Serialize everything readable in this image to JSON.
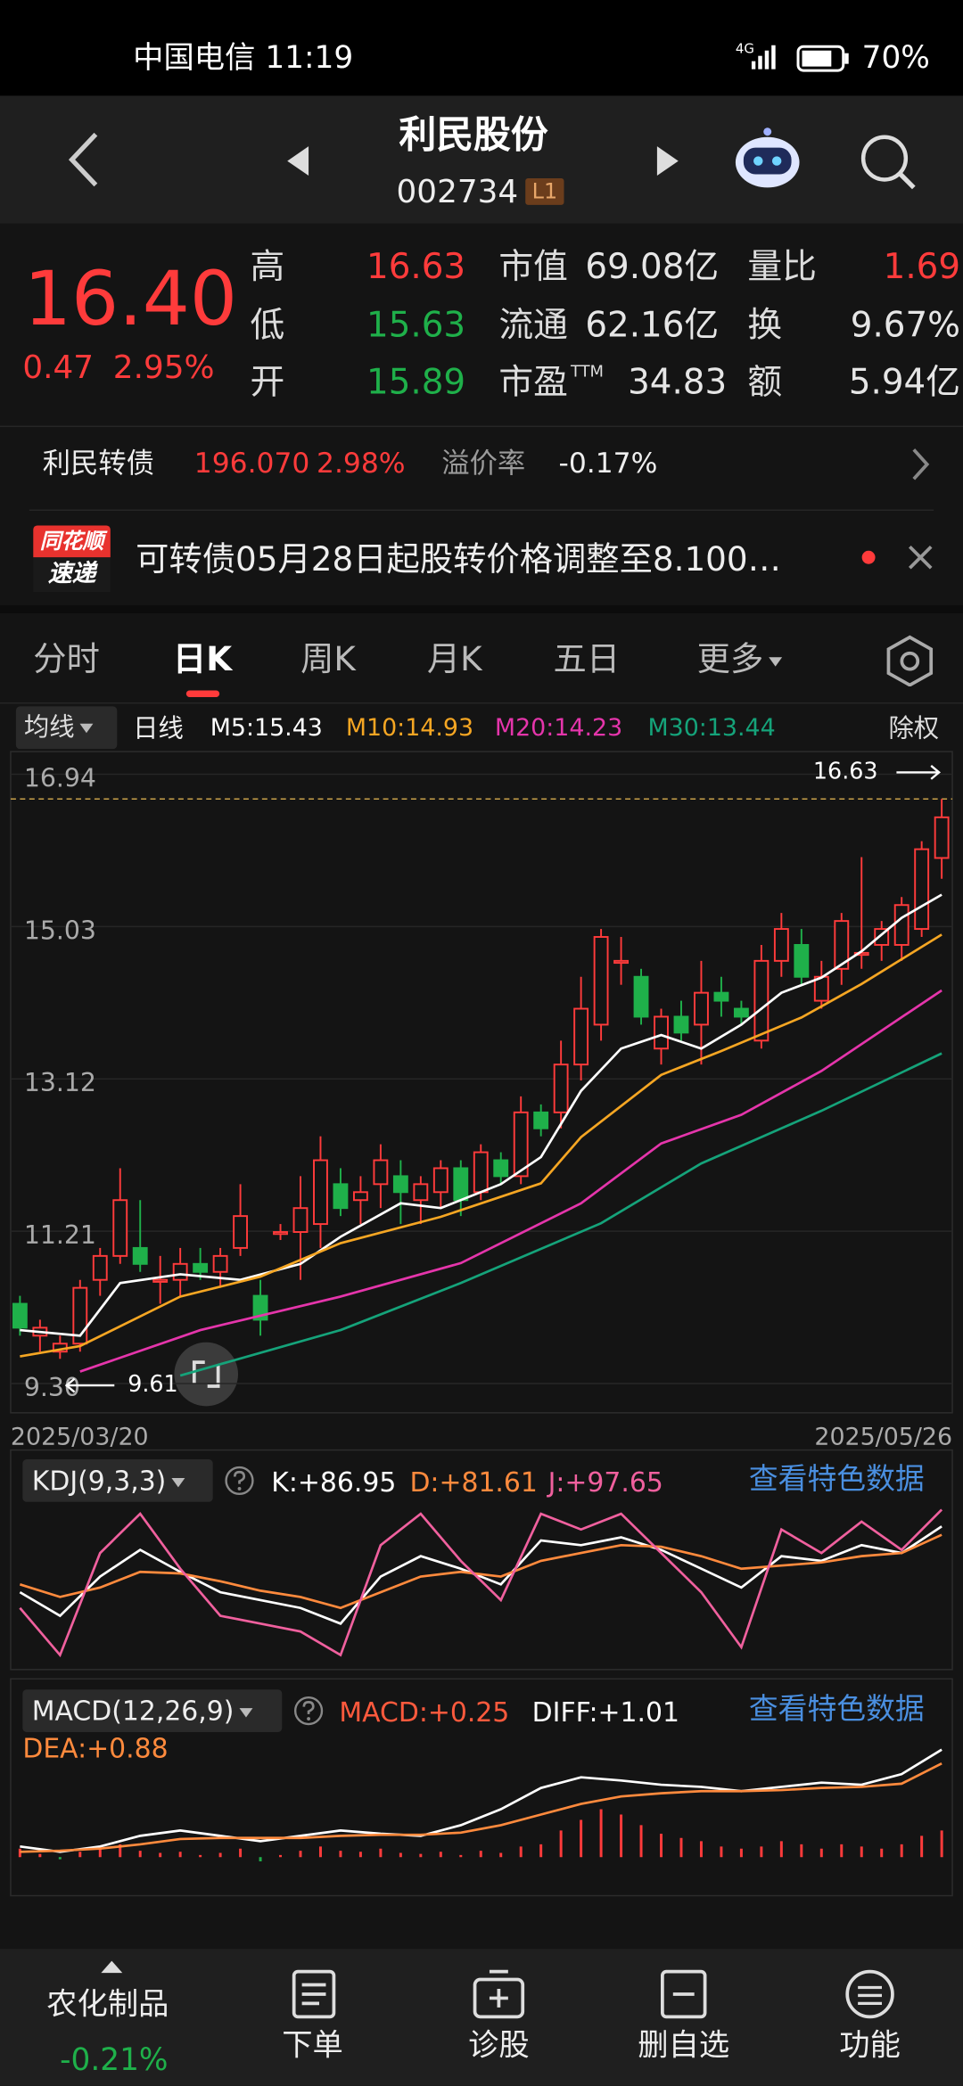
{
  "status_bar": {
    "carrier_time": "中国电信 11:19",
    "network": "4G",
    "battery": "70%"
  },
  "header": {
    "title": "利民股份",
    "code": "002734",
    "level": "L1"
  },
  "quote": {
    "price": "16.40",
    "change": "0.47",
    "change_pct": "2.95%",
    "col1": [
      {
        "label": "高",
        "value": "16.63"
      },
      {
        "label": "低",
        "value": "15.63"
      },
      {
        "label": "开",
        "value": "15.89"
      }
    ],
    "col2": [
      {
        "label": "市值",
        "value": "69.08亿"
      },
      {
        "label": "流通",
        "value": "62.16亿"
      },
      {
        "label": "市盈",
        "sup": "TTM",
        "value": "34.83"
      }
    ],
    "col3": [
      {
        "label": "量比",
        "value": "1.69"
      },
      {
        "label": "换",
        "value": "9.67%"
      },
      {
        "label": "额",
        "value": "5.94亿"
      }
    ]
  },
  "bond": {
    "name": "利民转债",
    "price": "196.070",
    "change_pct": "2.98%",
    "premium_label": "溢价率",
    "premium": "-0.17%"
  },
  "news": {
    "badge_top": "同花顺",
    "badge_bottom": "速递",
    "text": "可转债05月28日起股转价格调整至8.100…"
  },
  "tabs": [
    "分时",
    "日K",
    "周K",
    "月K",
    "五日",
    "更多"
  ],
  "ma_legend": {
    "selector": "均线",
    "period": "日线",
    "items": [
      "M5:15.43",
      "M10:14.93",
      "M20:14.23",
      "M30:13.44"
    ],
    "adjust": "除权"
  },
  "chart_data": [
    {
      "type": "candlestick",
      "ylim": [
        9.3,
        16.94
      ],
      "yticks": [
        16.94,
        15.03,
        13.12,
        11.21,
        {
          "value": 9.3,
          "label": "9.30"
        }
      ],
      "x_labels": [
        "2025/03/20",
        "2025/05/26"
      ],
      "up_color": "#ff3b3b",
      "down_color": "#1fb04a",
      "max_annotation": 16.63,
      "min_annotation": 9.61,
      "candles": [
        [
          10.3,
          10.4,
          9.9,
          10.0
        ],
        [
          9.9,
          10.1,
          9.7,
          10.0
        ],
        [
          9.7,
          9.9,
          9.61,
          9.8
        ],
        [
          9.8,
          10.6,
          9.7,
          10.5
        ],
        [
          10.6,
          11.0,
          10.4,
          10.9
        ],
        [
          10.9,
          12.0,
          10.8,
          11.6
        ],
        [
          11.0,
          11.6,
          10.7,
          10.8
        ],
        [
          10.6,
          10.9,
          10.3,
          10.6
        ],
        [
          10.6,
          11.0,
          10.4,
          10.8
        ],
        [
          10.8,
          11.0,
          10.6,
          10.7
        ],
        [
          10.7,
          11.0,
          10.5,
          10.9
        ],
        [
          11.0,
          11.8,
          10.9,
          11.4
        ],
        [
          10.4,
          10.6,
          9.9,
          10.1
        ],
        [
          11.2,
          11.3,
          11.1,
          11.2
        ],
        [
          11.2,
          11.9,
          10.6,
          11.5
        ],
        [
          11.3,
          12.4,
          11.0,
          12.1
        ],
        [
          11.8,
          12.0,
          11.4,
          11.5
        ],
        [
          11.6,
          11.9,
          11.3,
          11.7
        ],
        [
          11.8,
          12.3,
          11.5,
          12.1
        ],
        [
          11.9,
          12.1,
          11.3,
          11.7
        ],
        [
          11.6,
          11.9,
          11.3,
          11.8
        ],
        [
          11.7,
          12.1,
          11.5,
          12.0
        ],
        [
          12.0,
          12.1,
          11.4,
          11.6
        ],
        [
          11.7,
          12.3,
          11.6,
          12.2
        ],
        [
          12.1,
          12.2,
          11.8,
          11.9
        ],
        [
          11.9,
          12.9,
          11.8,
          12.7
        ],
        [
          12.7,
          12.8,
          12.4,
          12.5
        ],
        [
          12.7,
          13.6,
          12.5,
          13.3
        ],
        [
          13.3,
          14.4,
          13.1,
          14.0
        ],
        [
          13.8,
          15.0,
          13.6,
          14.9
        ],
        [
          14.6,
          14.9,
          14.3,
          14.6
        ],
        [
          14.4,
          14.5,
          13.8,
          13.9
        ],
        [
          13.5,
          14.0,
          13.3,
          13.9
        ],
        [
          13.9,
          14.1,
          13.6,
          13.7
        ],
        [
          13.8,
          14.6,
          13.3,
          14.2
        ],
        [
          14.2,
          14.4,
          13.9,
          14.1
        ],
        [
          14.0,
          14.1,
          13.8,
          13.9
        ],
        [
          13.6,
          14.8,
          13.5,
          14.6
        ],
        [
          14.6,
          15.2,
          14.4,
          15.0
        ],
        [
          14.8,
          15.0,
          14.3,
          14.4
        ],
        [
          14.1,
          14.6,
          14.0,
          14.4
        ],
        [
          14.5,
          15.2,
          14.3,
          15.1
        ],
        [
          14.7,
          15.9,
          14.5,
          14.7
        ],
        [
          14.8,
          15.1,
          14.6,
          15.0
        ],
        [
          14.8,
          15.4,
          14.6,
          15.3
        ],
        [
          15.0,
          16.1,
          14.9,
          16.0
        ],
        [
          15.89,
          16.63,
          15.63,
          16.4
        ]
      ],
      "series": [
        {
          "color": "#ffffff",
          "x": [
            0,
            3,
            5,
            8,
            11,
            14,
            16,
            19,
            21,
            24,
            26,
            28,
            30,
            32,
            34,
            36,
            38,
            40,
            42,
            44,
            46
          ],
          "values": [
            9.97,
            9.9,
            10.56,
            10.67,
            10.6,
            10.8,
            11.14,
            11.56,
            11.5,
            11.8,
            12.14,
            12.97,
            13.5,
            13.67,
            13.5,
            13.8,
            14.2,
            14.39,
            14.72,
            15.14,
            15.43
          ]
        },
        {
          "color": "#f5a623",
          "x": [
            0,
            3,
            8,
            12,
            16,
            21,
            26,
            28,
            32,
            35,
            39,
            42,
            46
          ],
          "values": [
            9.64,
            9.77,
            10.39,
            10.64,
            11.06,
            11.39,
            11.81,
            12.39,
            13.17,
            13.47,
            13.89,
            14.31,
            14.93
          ]
        },
        {
          "color": "#e535ab",
          "x": [
            3,
            9,
            16,
            22,
            28,
            32,
            36,
            40,
            46
          ],
          "values": [
            9.45,
            9.97,
            10.39,
            10.81,
            11.56,
            12.31,
            12.67,
            13.22,
            14.23
          ]
        },
        {
          "color": "#15a37a",
          "x": [
            8,
            16,
            22,
            29,
            34,
            40,
            46
          ],
          "values": [
            9.4,
            9.97,
            10.56,
            11.31,
            12.06,
            12.72,
            13.44
          ]
        }
      ]
    },
    {
      "type": "line",
      "title": "KDJ(9,3,3)",
      "link": "查看特色数据",
      "ylim": [
        0,
        100
      ],
      "series": [
        {
          "label": "K:+86.95",
          "color": "#ffffff",
          "values": [
            45,
            30,
            55,
            72,
            58,
            45,
            40,
            35,
            25,
            55,
            68,
            60,
            50,
            78,
            75,
            80,
            72,
            60,
            48,
            68,
            65,
            75,
            70,
            86.95
          ]
        },
        {
          "label": "D:+81.61",
          "color": "#ff8a3d",
          "values": [
            50,
            42,
            48,
            58,
            57,
            52,
            46,
            42,
            35,
            45,
            55,
            58,
            55,
            65,
            70,
            75,
            74,
            68,
            60,
            62,
            64,
            68,
            70,
            81.61
          ]
        },
        {
          "label": "J:+97.65",
          "color": "#f0609e",
          "values": [
            35,
            5,
            70,
            95,
            60,
            30,
            25,
            20,
            5,
            75,
            95,
            65,
            40,
            95,
            85,
            95,
            70,
            45,
            10,
            85,
            70,
            90,
            72,
            97.65
          ]
        }
      ]
    },
    {
      "type": "macd",
      "title": "MACD(12,26,9)",
      "link": "查看特色数据",
      "macd_label": "MACD:+0.25",
      "ylim": [
        -0.3,
        1.2
      ],
      "up_color": "#ff3b3b",
      "down_color": "#1fb04a",
      "bars": [
        0.08,
        0.03,
        -0.02,
        0.05,
        0.1,
        0.12,
        0.06,
        0.04,
        0.05,
        0.02,
        0.04,
        0.08,
        -0.04,
        0.02,
        0.06,
        0.1,
        0.06,
        0.05,
        0.08,
        0.04,
        0.03,
        0.05,
        0.02,
        0.06,
        0.04,
        0.1,
        0.12,
        0.25,
        0.35,
        0.45,
        0.4,
        0.3,
        0.22,
        0.18,
        0.15,
        0.1,
        0.08,
        0.1,
        0.15,
        0.12,
        0.08,
        0.12,
        0.1,
        0.08,
        0.12,
        0.2,
        0.25
      ],
      "series": [
        {
          "label": "DIFF:+1.01",
          "color": "#ffffff",
          "values": [
            0.1,
            0.05,
            0.1,
            0.2,
            0.25,
            0.2,
            0.15,
            0.2,
            0.25,
            0.22,
            0.2,
            0.3,
            0.45,
            0.65,
            0.75,
            0.72,
            0.68,
            0.66,
            0.62,
            0.66,
            0.7,
            0.68,
            0.78,
            1.01
          ]
        },
        {
          "label": "DEA:+0.88",
          "color": "#ff8a3d",
          "values": [
            0.05,
            0.06,
            0.08,
            0.12,
            0.17,
            0.18,
            0.18,
            0.18,
            0.2,
            0.21,
            0.21,
            0.23,
            0.3,
            0.4,
            0.5,
            0.57,
            0.6,
            0.62,
            0.62,
            0.63,
            0.65,
            0.66,
            0.69,
            0.88
          ]
        }
      ]
    }
  ],
  "bottom_nav": {
    "sector": "农化制品",
    "sector_change": "-0.21%",
    "items": [
      "下单",
      "诊股",
      "删自选",
      "功能"
    ]
  }
}
